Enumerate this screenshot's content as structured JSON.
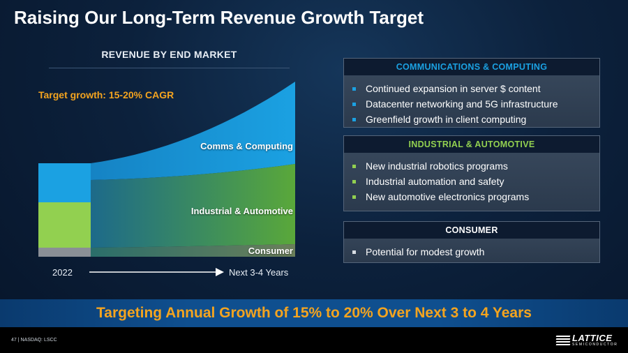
{
  "title": "Raising Our Long-Term Revenue Growth Target",
  "chart_data": {
    "type": "area",
    "title": "REVENUE BY END MARKET",
    "annotation": "Target growth: 15-20% CAGR",
    "x_start_label": "2022",
    "x_end_label": "Next 3-4 Years",
    "series": [
      {
        "name": "Consumer",
        "color": "#8a8f96"
      },
      {
        "name": "Industrial & Automotive",
        "color": "#92d050"
      },
      {
        "name": "Comms & Computing",
        "color": "#1ba1e2"
      }
    ]
  },
  "panels": [
    {
      "header": "COMMUNICATIONS & COMPUTING",
      "header_color": "#1ba1e2",
      "bullets": [
        "Continued expansion in server $ content",
        "Datacenter networking and 5G infrastructure",
        "Greenfield growth in client computing"
      ]
    },
    {
      "header": "INDUSTRIAL & AUTOMOTIVE",
      "header_color": "#92d050",
      "bullets": [
        "New industrial robotics programs",
        "Industrial automation and safety",
        "New automotive electronics programs"
      ]
    },
    {
      "header": "CONSUMER",
      "header_color": "#ffffff",
      "bullets": [
        "Potential for modest growth"
      ]
    }
  ],
  "banner": "Targeting Annual Growth of 15% to 20% Over Next 3 to 4 Years",
  "footer": "47  |  NASDAQ: LSCC",
  "logo": {
    "word": "LATTICE",
    "sub": "SEMICONDUCTOR"
  }
}
